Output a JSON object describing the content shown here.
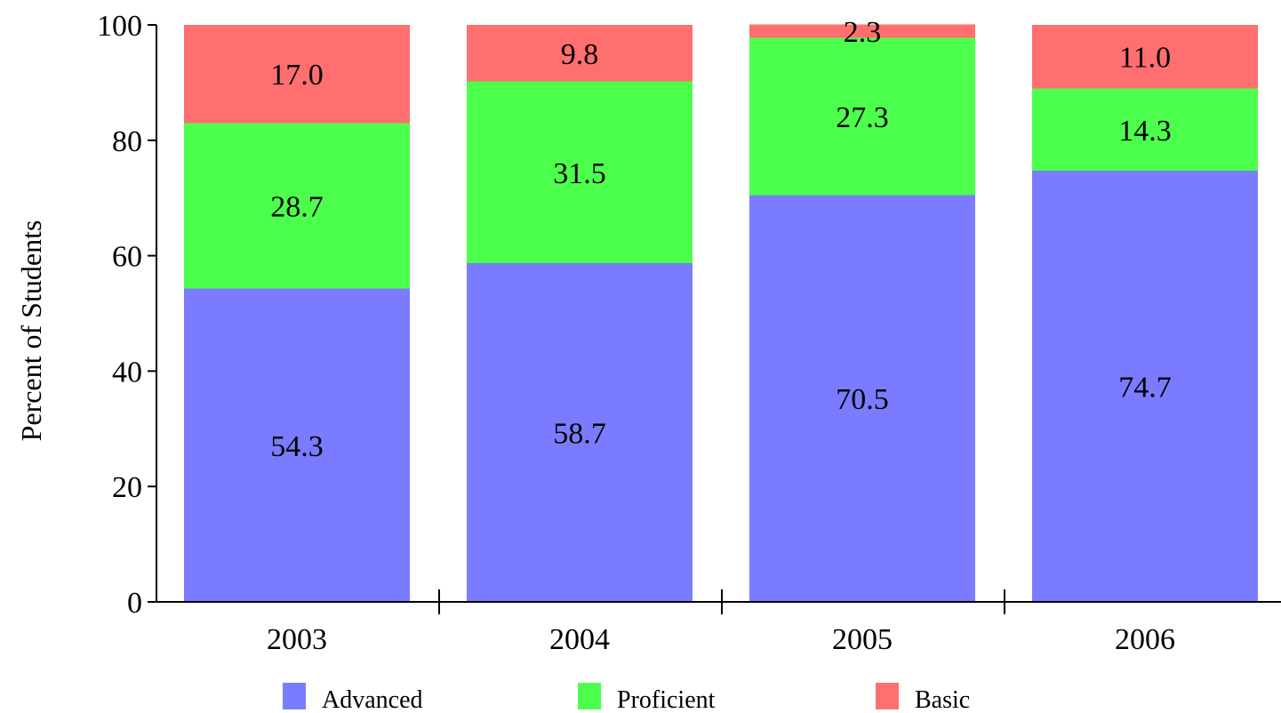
{
  "chart_data": {
    "type": "bar",
    "stacked": true,
    "categories": [
      "2003",
      "2004",
      "2005",
      "2006"
    ],
    "series": [
      {
        "name": "Advanced",
        "color": "#7b7bff",
        "values": [
          54.3,
          58.7,
          70.5,
          74.7
        ]
      },
      {
        "name": "Proficient",
        "color": "#4cff4c",
        "values": [
          28.7,
          31.5,
          27.3,
          14.3
        ]
      },
      {
        "name": "Basic",
        "color": "#ff6f6f",
        "values": [
          17.0,
          9.8,
          2.3,
          11.0
        ]
      }
    ],
    "data_labels": [
      [
        "54.3",
        "58.7",
        "70.5",
        "74.7"
      ],
      [
        "28.7",
        "31.5",
        "27.3",
        "14.3"
      ],
      [
        "17.0",
        "9.8",
        "2.3",
        "11.0"
      ]
    ],
    "title": "",
    "xlabel": "",
    "ylabel": "Percent of Students",
    "ylim": [
      0,
      100
    ],
    "yticks": [
      "0",
      "20",
      "40",
      "60",
      "80",
      "100"
    ],
    "grid": false,
    "legend_position": "bottom"
  }
}
